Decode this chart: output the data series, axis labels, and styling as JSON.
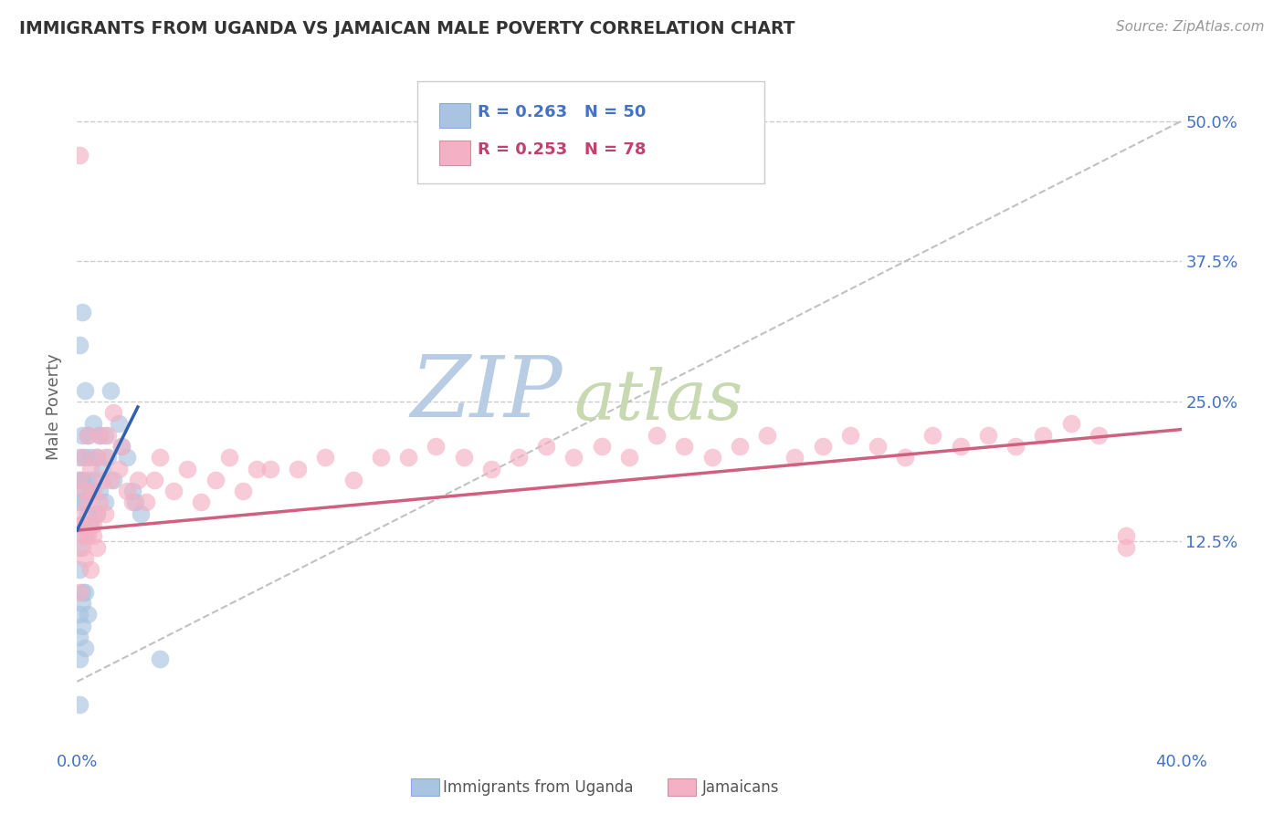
{
  "title": "IMMIGRANTS FROM UGANDA VS JAMAICAN MALE POVERTY CORRELATION CHART",
  "source_text": "Source: ZipAtlas.com",
  "ylabel": "Male Poverty",
  "ytick_labels": [
    "12.5%",
    "25.0%",
    "37.5%",
    "50.0%"
  ],
  "ytick_values": [
    0.125,
    0.25,
    0.375,
    0.5
  ],
  "xmin": 0.0,
  "xmax": 0.4,
  "ymin": -0.06,
  "ymax": 0.55,
  "legend_r1": "R = 0.263",
  "legend_n1": "N = 50",
  "legend_r2": "R = 0.253",
  "legend_n2": "N = 78",
  "color_blue": "#a8c4e0",
  "color_pink": "#f4b0c4",
  "line_blue": "#3060b0",
  "line_pink": "#d06080",
  "legend_text_color_blue": "#4472c4",
  "legend_text_color_pink": "#c04070",
  "watermark_zip": "ZIP",
  "watermark_atlas": "atlas",
  "watermark_color_zip": "#b8cce4",
  "watermark_color_atlas": "#c8d8b0",
  "grid_color": "#cccccc",
  "diag_color": "#bbbbbb",
  "blue_x": [
    0.001,
    0.001,
    0.001,
    0.001,
    0.001,
    0.001,
    0.002,
    0.002,
    0.002,
    0.002,
    0.002,
    0.002,
    0.003,
    0.003,
    0.003,
    0.003,
    0.004,
    0.004,
    0.004,
    0.005,
    0.005,
    0.005,
    0.006,
    0.006,
    0.007,
    0.007,
    0.008,
    0.008,
    0.009,
    0.01,
    0.01,
    0.011,
    0.012,
    0.013,
    0.015,
    0.016,
    0.018,
    0.02,
    0.021,
    0.023,
    0.001,
    0.001,
    0.001,
    0.002,
    0.002,
    0.003,
    0.003,
    0.004,
    0.03,
    0.001
  ],
  "blue_y": [
    0.3,
    0.2,
    0.18,
    0.16,
    0.12,
    0.1,
    0.33,
    0.22,
    0.18,
    0.16,
    0.14,
    0.08,
    0.26,
    0.2,
    0.17,
    0.13,
    0.22,
    0.18,
    0.15,
    0.2,
    0.17,
    0.14,
    0.23,
    0.18,
    0.2,
    0.15,
    0.22,
    0.17,
    0.19,
    0.22,
    0.16,
    0.2,
    0.26,
    0.18,
    0.23,
    0.21,
    0.2,
    0.17,
    0.16,
    0.15,
    0.06,
    0.04,
    0.02,
    0.07,
    0.05,
    0.08,
    0.03,
    0.06,
    0.02,
    -0.02
  ],
  "pink_x": [
    0.001,
    0.001,
    0.002,
    0.002,
    0.003,
    0.003,
    0.004,
    0.004,
    0.005,
    0.005,
    0.006,
    0.006,
    0.007,
    0.007,
    0.008,
    0.008,
    0.009,
    0.01,
    0.01,
    0.011,
    0.012,
    0.013,
    0.015,
    0.016,
    0.018,
    0.02,
    0.022,
    0.025,
    0.028,
    0.03,
    0.035,
    0.04,
    0.045,
    0.05,
    0.055,
    0.06,
    0.065,
    0.07,
    0.08,
    0.09,
    0.1,
    0.11,
    0.12,
    0.13,
    0.14,
    0.15,
    0.16,
    0.17,
    0.18,
    0.19,
    0.2,
    0.21,
    0.22,
    0.23,
    0.24,
    0.25,
    0.26,
    0.27,
    0.28,
    0.29,
    0.3,
    0.31,
    0.32,
    0.33,
    0.34,
    0.35,
    0.36,
    0.37,
    0.002,
    0.003,
    0.004,
    0.005,
    0.006,
    0.007,
    0.38,
    0.001,
    0.001,
    0.38
  ],
  "pink_y": [
    0.18,
    0.14,
    0.2,
    0.15,
    0.17,
    0.13,
    0.22,
    0.16,
    0.19,
    0.14,
    0.17,
    0.13,
    0.2,
    0.15,
    0.22,
    0.16,
    0.18,
    0.2,
    0.15,
    0.22,
    0.18,
    0.24,
    0.19,
    0.21,
    0.17,
    0.16,
    0.18,
    0.16,
    0.18,
    0.2,
    0.17,
    0.19,
    0.16,
    0.18,
    0.2,
    0.17,
    0.19,
    0.19,
    0.19,
    0.2,
    0.18,
    0.2,
    0.2,
    0.21,
    0.2,
    0.19,
    0.2,
    0.21,
    0.2,
    0.21,
    0.2,
    0.22,
    0.21,
    0.2,
    0.21,
    0.22,
    0.2,
    0.21,
    0.22,
    0.21,
    0.2,
    0.22,
    0.21,
    0.22,
    0.21,
    0.22,
    0.23,
    0.22,
    0.12,
    0.11,
    0.13,
    0.1,
    0.14,
    0.12,
    0.13,
    0.47,
    0.08,
    0.12
  ],
  "blue_line_x0": 0.0,
  "blue_line_x1": 0.022,
  "blue_line_y0": 0.135,
  "blue_line_y1": 0.245,
  "pink_line_x0": 0.0,
  "pink_line_x1": 0.4,
  "pink_line_y0": 0.135,
  "pink_line_y1": 0.225
}
